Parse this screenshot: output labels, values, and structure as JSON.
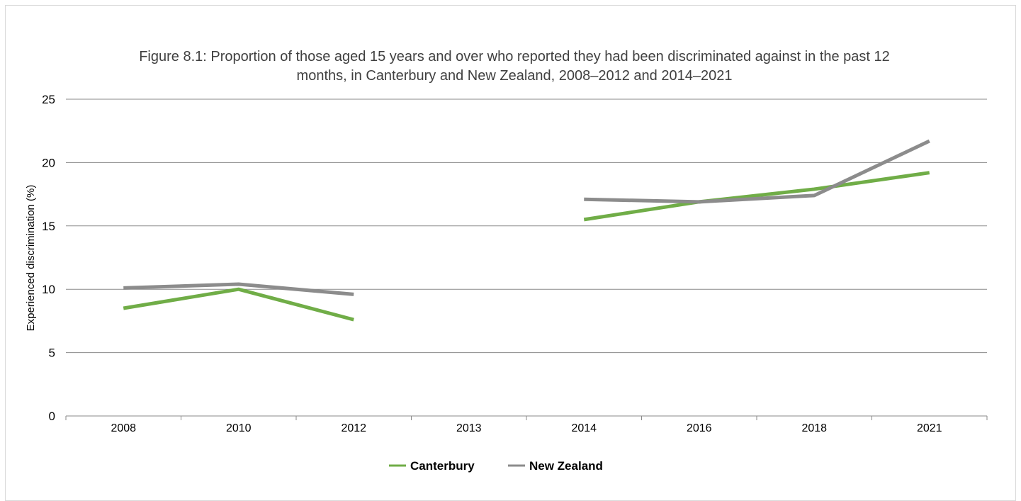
{
  "chart_data": {
    "type": "line",
    "title": [
      "Figure 8.1: Proportion of those aged 15 years and over who reported they had been discriminated against in the past 12",
      "months, in Canterbury and New Zealand, 2008–2012 and 2014–2021"
    ],
    "xlabel": "",
    "ylabel": "Experienced discrimination (%)",
    "categories": [
      "2008",
      "2010",
      "2012",
      "2013",
      "2014",
      "2016",
      "2018",
      "2021"
    ],
    "ylim": [
      0,
      25
    ],
    "yticks": [
      0,
      5,
      10,
      15,
      20,
      25
    ],
    "grid": true,
    "legend_position": "bottom",
    "series": [
      {
        "name": "Canterbury",
        "color": "#70ad47",
        "values": [
          8.5,
          10.0,
          7.6,
          null,
          15.5,
          16.9,
          17.9,
          19.2
        ]
      },
      {
        "name": "New Zealand",
        "color": "#8c8c8c",
        "values": [
          10.1,
          10.4,
          9.6,
          null,
          17.1,
          16.9,
          17.4,
          21.7
        ]
      }
    ]
  }
}
